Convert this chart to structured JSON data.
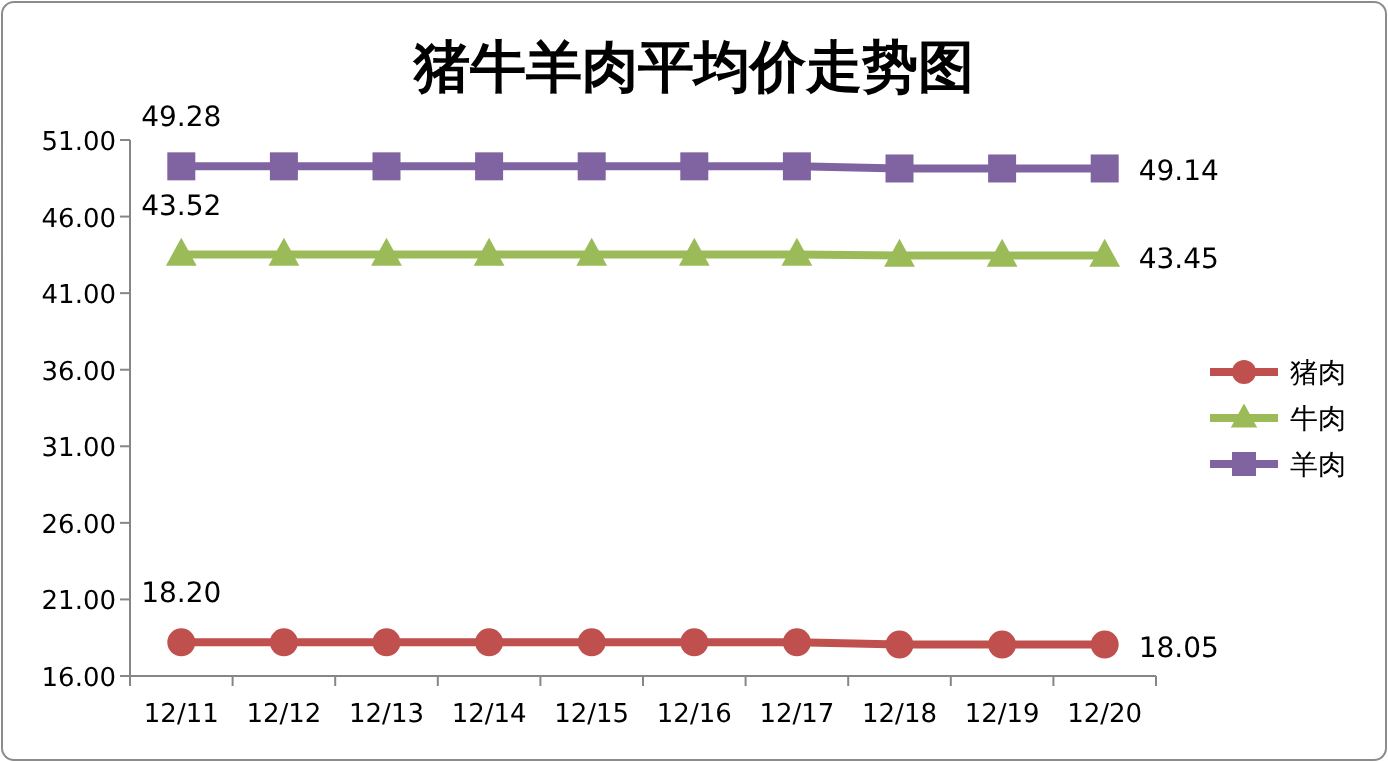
{
  "chart_data": {
    "type": "line",
    "title": "猪牛羊肉平均价走势图",
    "categories": [
      "12/11",
      "12/12",
      "12/13",
      "12/14",
      "12/15",
      "12/16",
      "12/17",
      "12/18",
      "12/19",
      "12/20"
    ],
    "ylim": [
      16,
      51
    ],
    "yticks": [
      {
        "value": 16,
        "label": "16.00"
      },
      {
        "value": 21,
        "label": "21.00"
      },
      {
        "value": 26,
        "label": "26.00"
      },
      {
        "value": 31,
        "label": "31.00"
      },
      {
        "value": 36,
        "label": "36.00"
      },
      {
        "value": 41,
        "label": "41.00"
      },
      {
        "value": 46,
        "label": "46.00"
      },
      {
        "value": 51,
        "label": "51.00"
      }
    ],
    "grid": false,
    "legend": "right",
    "line_style": "solid",
    "series": [
      {
        "name": "猪肉",
        "color": "#c0504d",
        "marker": "circle",
        "values": [
          18.2,
          18.2,
          18.2,
          18.2,
          18.2,
          18.2,
          18.2,
          18.05,
          18.05,
          18.05
        ],
        "value_labels": [
          "18.20",
          null,
          null,
          null,
          null,
          null,
          null,
          null,
          null,
          "18.05"
        ]
      },
      {
        "name": "牛肉",
        "color": "#9bbb59",
        "marker": "triangle",
        "values": [
          43.52,
          43.52,
          43.52,
          43.52,
          43.52,
          43.52,
          43.52,
          43.45,
          43.45,
          43.45
        ],
        "value_labels": [
          "43.52",
          null,
          null,
          null,
          null,
          null,
          null,
          null,
          null,
          "43.45"
        ]
      },
      {
        "name": "羊肉",
        "color": "#8064a2",
        "marker": "square",
        "values": [
          49.28,
          49.28,
          49.28,
          49.28,
          49.28,
          49.28,
          49.28,
          49.14,
          49.14,
          49.14
        ],
        "value_labels": [
          "49.28",
          null,
          null,
          null,
          null,
          null,
          null,
          null,
          null,
          "49.14"
        ]
      }
    ]
  }
}
